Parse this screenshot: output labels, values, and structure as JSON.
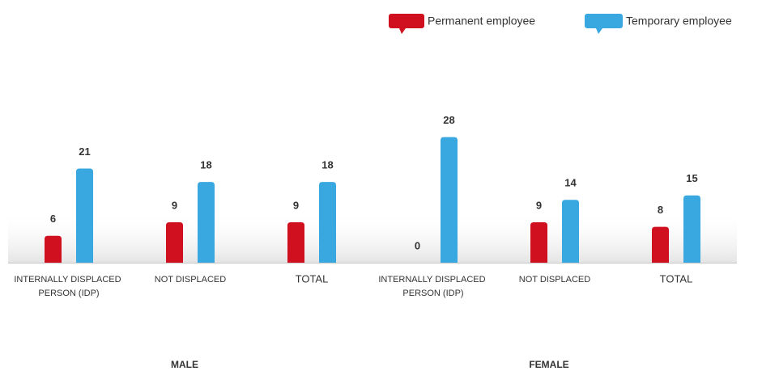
{
  "chart_data": [
    {
      "type": "bar",
      "title": "MALE",
      "categories": [
        "INTERNALLY DISPLACED PERSON (IDP)",
        "NOT DISPLACED",
        "TOTAL"
      ],
      "series": [
        {
          "name": "Permanent employee",
          "color": "#d0101e",
          "values": [
            6,
            9,
            9
          ]
        },
        {
          "name": "Temporary employee",
          "color": "#3aa8e0",
          "values": [
            21,
            18,
            18
          ]
        }
      ]
    },
    {
      "type": "bar",
      "title": "FEMALE",
      "categories": [
        "INTERNALLY DISPLACED PERSON (IDP)",
        "NOT DISPLACED",
        "TOTAL"
      ],
      "series": [
        {
          "color": "#d0101e",
          "values": [
            0,
            9,
            8
          ]
        },
        {
          "color": "#3aa8e0",
          "values": [
            28,
            14,
            15
          ]
        }
      ]
    }
  ]
}
